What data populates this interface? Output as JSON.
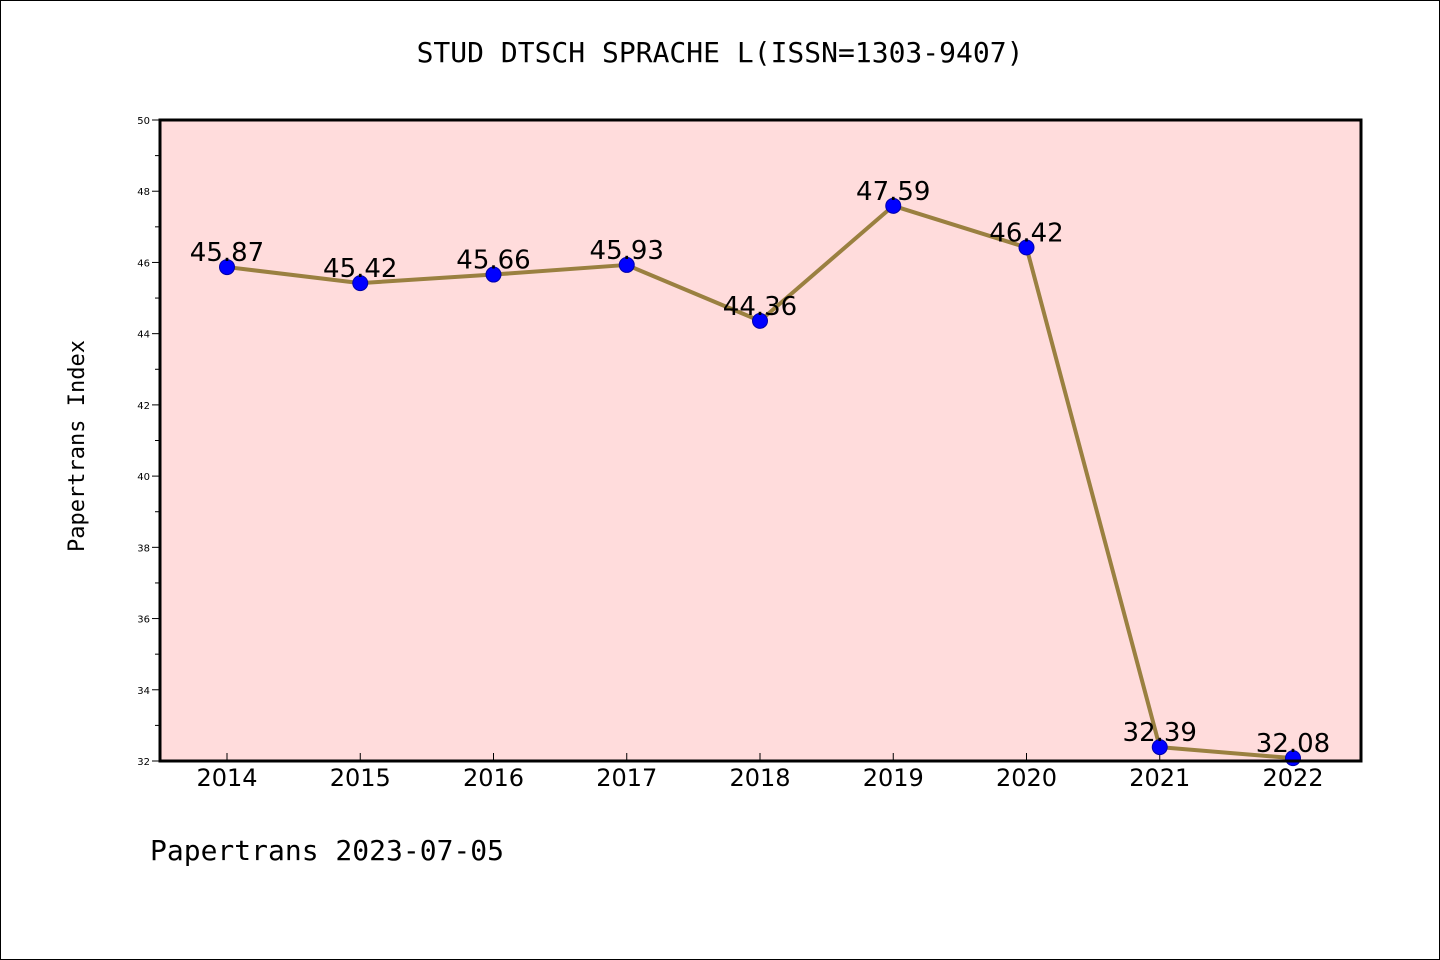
{
  "chart_data": {
    "type": "line",
    "title": "STUD DTSCH SPRACHE L(ISSN=1303-9407)",
    "xlabel": "",
    "ylabel": "Papertrans Index",
    "footer": "Papertrans 2023-07-05",
    "categories": [
      "2014",
      "2015",
      "2016",
      "2017",
      "2018",
      "2019",
      "2020",
      "2021",
      "2022"
    ],
    "values": [
      45.87,
      45.42,
      45.66,
      45.93,
      44.36,
      47.59,
      46.42,
      32.39,
      32.08
    ],
    "data_labels": [
      "45.87",
      "45.42",
      "45.66",
      "45.93",
      "44.36",
      "47.59",
      "46.42",
      "32.39",
      "32.08"
    ],
    "ylim": [
      32,
      50
    ],
    "yticks": [
      "32",
      "34",
      "36",
      "38",
      "40",
      "42",
      "44",
      "46",
      "48",
      "50"
    ],
    "grid": false,
    "legend": "none",
    "colors": {
      "plot_background": "#ffdcdc",
      "line": "#9a8040",
      "marker": "#0000ff",
      "axes": "#000000"
    }
  }
}
